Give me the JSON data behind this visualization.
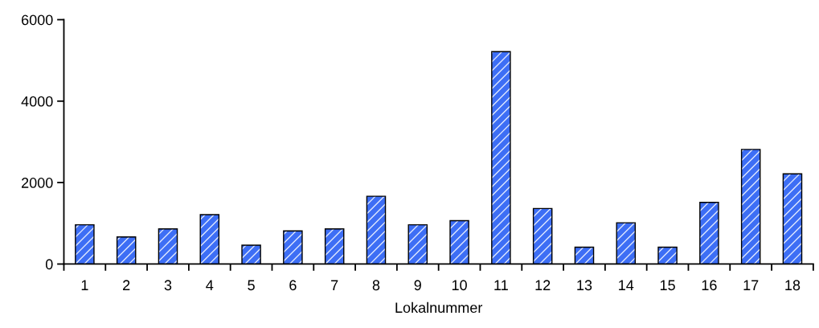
{
  "chart_data": {
    "type": "bar",
    "xlabel": "Lokalnummer",
    "categories": [
      "1",
      "2",
      "3",
      "4",
      "5",
      "6",
      "7",
      "8",
      "9",
      "10",
      "11",
      "12",
      "13",
      "14",
      "15",
      "16",
      "17",
      "18"
    ],
    "values": [
      950,
      650,
      850,
      1200,
      450,
      800,
      850,
      1650,
      950,
      1050,
      5200,
      1350,
      400,
      1000,
      400,
      1500,
      2800,
      2200
    ],
    "color": "#3d6ef5",
    "ylim": [
      0,
      6000
    ],
    "yticks": [
      0,
      2000,
      4000,
      6000
    ],
    "grid": false
  }
}
